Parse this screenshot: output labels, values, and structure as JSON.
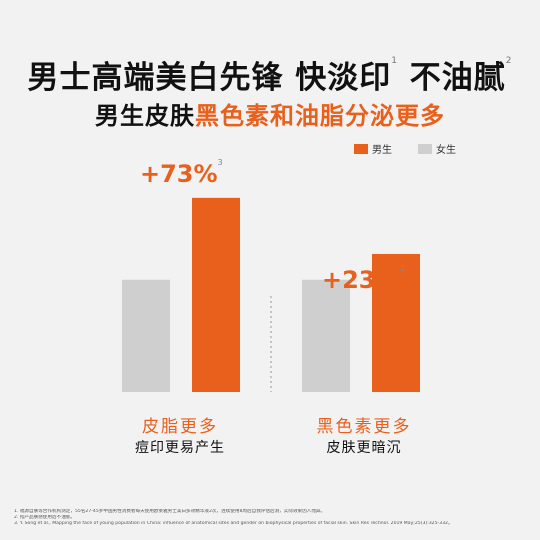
{
  "headline": {
    "part1": "男士高端美白先锋 快淡印",
    "sup1": "1",
    "part2": " 不油腻",
    "sup2": "2"
  },
  "subhead": {
    "lead": "男生皮肤",
    "accent": "黑色素和油脂分泌更多"
  },
  "colors": {
    "male": "#e8601c",
    "female": "#cfcfcf",
    "divider": "#b5b5b5"
  },
  "legend": {
    "male": "男生",
    "female": "女生"
  },
  "chart_data": {
    "type": "bar",
    "series": [
      {
        "name": "女生",
        "values": [
          100,
          100
        ]
      },
      {
        "name": "男生",
        "values": [
          173,
          123
        ]
      }
    ],
    "groups": [
      {
        "label": "+73%",
        "note": "3",
        "caption_main": "皮脂更多",
        "caption_sub": "痘印更易产生"
      },
      {
        "label": "+23%",
        "note": "3",
        "caption_main": "黑色素更多",
        "caption_sub": "皮肤更暗沉"
      }
    ],
    "ylim": [
      0,
      180
    ],
    "grid": false,
    "legend_position": "top-right"
  },
  "footnotes": [
    "1. 福源自肤等合作机构测定，55名27-45岁中国男性消费者每天使用欧莱雅男士美白多效精华液2次，连续使用8周后自我评估后测，实际效果因人而异。",
    "2. 指产品肤感使用后不油腻。",
    "3. Y. Song et al., Mapping the face of young population in China: influence of anatomical sites and gender on biophysical properties of facial skin. Skin Res Technol. 2019 May;25(3):325-332。"
  ]
}
